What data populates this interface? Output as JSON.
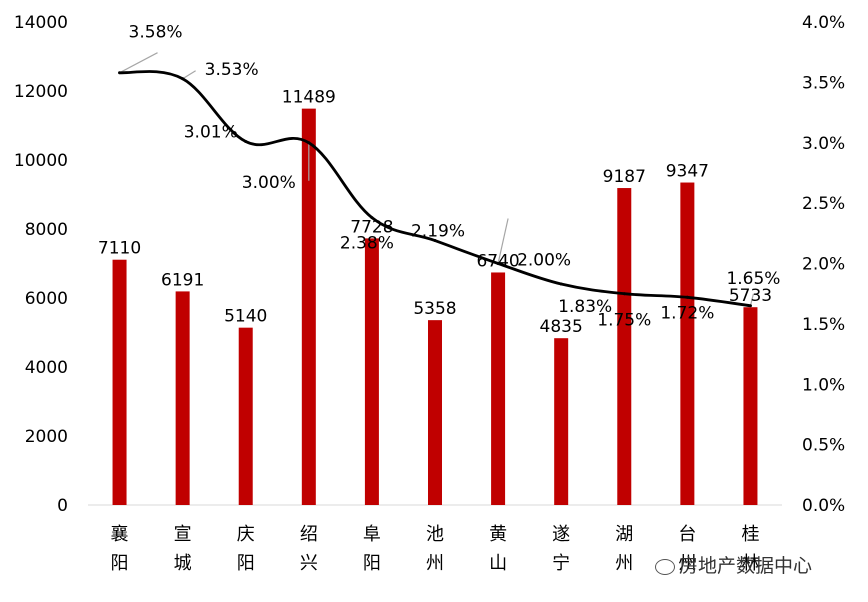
{
  "chart_data": {
    "type": "bar",
    "categories": [
      "襄阳",
      "宣城",
      "庆阳",
      "绍兴",
      "阜阳",
      "池州",
      "黄山",
      "遂宁",
      "湖州",
      "台州",
      "桂林"
    ],
    "series": [
      {
        "type": "bar",
        "values": [
          7110,
          6191,
          5140,
          11489,
          7728,
          5358,
          6740,
          4835,
          9187,
          9347,
          5733
        ],
        "color": "#c00000",
        "axis": "left"
      },
      {
        "type": "line",
        "values": [
          3.58,
          3.53,
          3.01,
          3.0,
          2.38,
          2.19,
          2.0,
          1.83,
          1.75,
          1.72,
          1.65
        ],
        "color": "#000000",
        "axis": "right"
      }
    ],
    "bar_labels": [
      "7110",
      "6191",
      "5140",
      "11489",
      "7728",
      "5358",
      "6740",
      "4835",
      "9187",
      "9347",
      "5733"
    ],
    "line_labels": [
      "3.58%",
      "3.53%",
      "3.01%",
      "3.00%",
      "2.38%",
      "2.19%",
      "2.00%",
      "1.83%",
      "1.75%",
      "1.72%",
      "1.65%"
    ],
    "y_left": {
      "ylim": [
        0,
        14000
      ],
      "ticks": [
        "0",
        "2000",
        "4000",
        "6000",
        "8000",
        "10000",
        "12000",
        "14000"
      ]
    },
    "y_right": {
      "ylim": [
        0,
        4.0
      ],
      "ticks": [
        "0.0%",
        "0.5%",
        "1.0%",
        "1.5%",
        "2.0%",
        "2.5%",
        "3.0%",
        "3.5%",
        "4.0%"
      ]
    },
    "grid": false,
    "legend": "none"
  },
  "watermark": {
    "text": "房地产数据中心",
    "icon": "wechat-icon"
  }
}
